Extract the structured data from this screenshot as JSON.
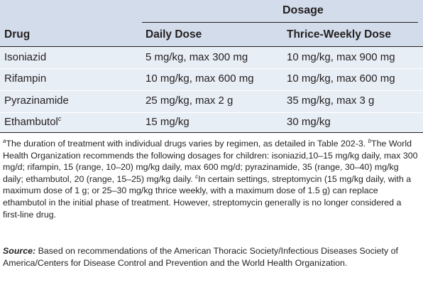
{
  "table": {
    "group_header": "Dosage",
    "columns": [
      "Drug",
      "Daily Dose",
      "Thrice-Weekly Dose"
    ],
    "rows": [
      {
        "drug": "Isoniazid",
        "sup": "",
        "daily": "5 mg/kg, max 300 mg",
        "thrice": "10 mg/kg, max 900 mg"
      },
      {
        "drug": "Rifampin",
        "sup": "",
        "daily": "10 mg/kg, max 600 mg",
        "thrice": "10 mg/kg, max 600 mg"
      },
      {
        "drug": "Pyrazinamide",
        "sup": "",
        "daily": "25 mg/kg, max 2 g",
        "thrice": "35 mg/kg, max 3 g"
      },
      {
        "drug": "Ethambutol",
        "sup": "c",
        "daily": "15 mg/kg",
        "thrice": "30 mg/kg"
      }
    ]
  },
  "footnotes": {
    "a_mark": "a",
    "a_text": "The duration of treatment with individual drugs varies by regimen, as detailed in Table 202-3. ",
    "b_mark": "b",
    "b_text": "The World Health Organization recommends the following dosages for children: isoniazid,10–15 mg/kg daily, max 300 mg/d; rifampin, 15 (range, 10–20) mg/kg daily, max 600 mg/d; pyrazinamide, 35 (range, 30–40) mg/kg daily; ethambutol, 20 (range, 15–25) mg/kg daily. ",
    "c_mark": "c",
    "c_text": "In certain settings, streptomycin (15 mg/kg daily, with a maximum dose of 1 g; or 25–30 mg/kg thrice weekly, with a maximum dose of 1.5 g) can replace ethambutol in the initial phase of treatment. However, streptomycin generally is no longer considered a first-line drug."
  },
  "source": {
    "label": "Source:",
    "text": " Based on recommendations of the American Thoracic Society/Infectious Diseases Society of America/Centers for Disease Control and Prevention and the World Health Organization."
  }
}
